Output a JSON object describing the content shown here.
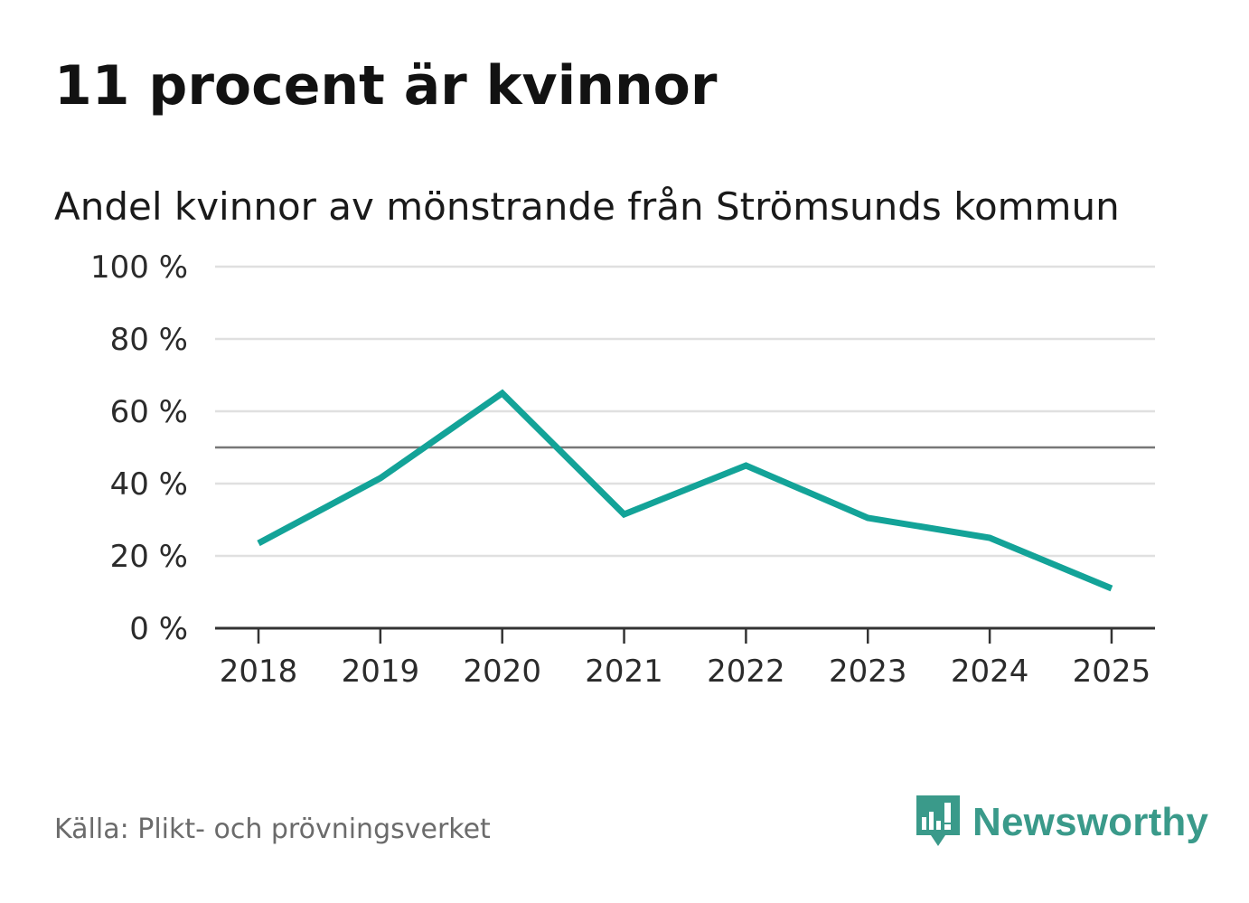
{
  "header": {
    "title": "11 procent är kvinnor",
    "subtitle": "Andel kvinnor av mönstrande från Strömsunds kommun"
  },
  "footer": {
    "source": "Källa: Plikt- och prövningsverket",
    "brand": "Newsworthy",
    "brand_icon": "chart-bubble-icon"
  },
  "colors": {
    "line": "#13a398",
    "grid": "#e0e0e0",
    "reference": "#777777",
    "axis": "#333333",
    "brand": "#3a9a8a"
  },
  "chart_data": {
    "type": "line",
    "title": "Andel kvinnor av mönstrande från Strömsunds kommun",
    "xlabel": "",
    "ylabel": "",
    "categories": [
      "2018",
      "2019",
      "2020",
      "2021",
      "2022",
      "2023",
      "2024",
      "2025"
    ],
    "series": [
      {
        "name": "Andel kvinnor",
        "values": [
          23.5,
          41.5,
          65,
          31.5,
          45,
          30.5,
          25,
          11
        ]
      }
    ],
    "reference_line": 50,
    "ylim": [
      0,
      100
    ],
    "yticks": [
      0,
      20,
      40,
      60,
      80,
      100
    ],
    "ytick_labels": [
      "0 %",
      "20 %",
      "40 %",
      "60 %",
      "80 %",
      "100 %"
    ],
    "grid": true,
    "legend": "none"
  }
}
